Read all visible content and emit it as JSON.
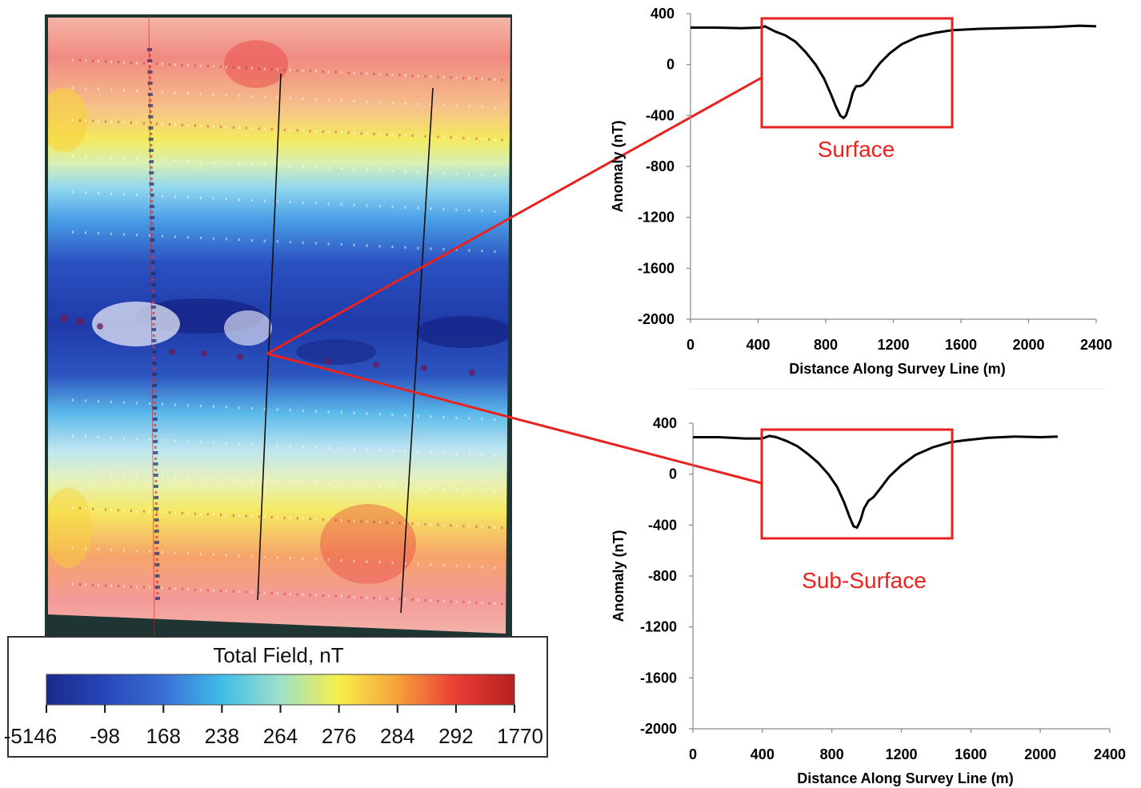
{
  "map": {
    "legend": {
      "title": "Total Field, nT",
      "ticks": [
        "-5146",
        "-98",
        "168",
        "238",
        "264",
        "276",
        "284",
        "292",
        "1770"
      ],
      "colors": [
        "#1b2a8c",
        "#2746b8",
        "#3a6fd6",
        "#3fbde8",
        "#9fe0c8",
        "#f6f04a",
        "#f6a13a",
        "#ea3d35",
        "#b6201f"
      ]
    }
  },
  "chart_data": [
    {
      "type": "line",
      "title": "",
      "xlabel": "Distance Along Survey Line (m)",
      "ylabel": "Anomaly (nT)",
      "xlim": [
        0,
        2400
      ],
      "ylim": [
        -2000,
        400
      ],
      "xticks": [
        "0",
        "400",
        "800",
        "1200",
        "1600",
        "2000",
        "2400"
      ],
      "yticks": [
        "400",
        "0",
        "-400",
        "-800",
        "-1200",
        "-1600",
        "-2000"
      ],
      "annotation": "Surface",
      "series": [
        {
          "x": [
            0,
            150,
            300,
            410,
            440,
            500,
            560,
            620,
            680,
            740,
            790,
            830,
            860,
            885,
            905,
            920,
            940,
            960,
            980,
            1000,
            1020,
            1050,
            1080,
            1120,
            1180,
            1250,
            1350,
            1450,
            1550,
            1700,
            1850,
            2000,
            2150,
            2300,
            2400
          ],
          "y": [
            290,
            290,
            285,
            290,
            300,
            260,
            230,
            180,
            100,
            0,
            -110,
            -230,
            -330,
            -400,
            -420,
            -400,
            -320,
            -220,
            -170,
            -170,
            -160,
            -120,
            -60,
            10,
            90,
            160,
            220,
            250,
            270,
            280,
            285,
            290,
            295,
            305,
            300
          ]
        }
      ]
    },
    {
      "type": "line",
      "title": "",
      "xlabel": "Distance Along Survey Line (m)",
      "ylabel": "Anomaly (nT)",
      "xlim": [
        0,
        2400
      ],
      "ylim": [
        -2000,
        400
      ],
      "xticks": [
        "0",
        "400",
        "800",
        "1200",
        "1600",
        "2000",
        "2400"
      ],
      "yticks": [
        "400",
        "0",
        "-400",
        "-800",
        "-1200",
        "-1600",
        "-2000"
      ],
      "annotation": "Sub-Surface",
      "series": [
        {
          "x": [
            0,
            150,
            300,
            400,
            440,
            480,
            540,
            600,
            660,
            720,
            780,
            830,
            870,
            900,
            925,
            945,
            965,
            985,
            1010,
            1040,
            1080,
            1130,
            1200,
            1280,
            1380,
            1480,
            1560,
            1700,
            1850,
            2000,
            2100
          ],
          "y": [
            290,
            290,
            280,
            280,
            300,
            290,
            260,
            220,
            160,
            90,
            0,
            -100,
            -220,
            -330,
            -410,
            -420,
            -360,
            -270,
            -210,
            -180,
            -110,
            -20,
            70,
            150,
            210,
            250,
            265,
            285,
            295,
            290,
            295
          ]
        }
      ]
    }
  ]
}
